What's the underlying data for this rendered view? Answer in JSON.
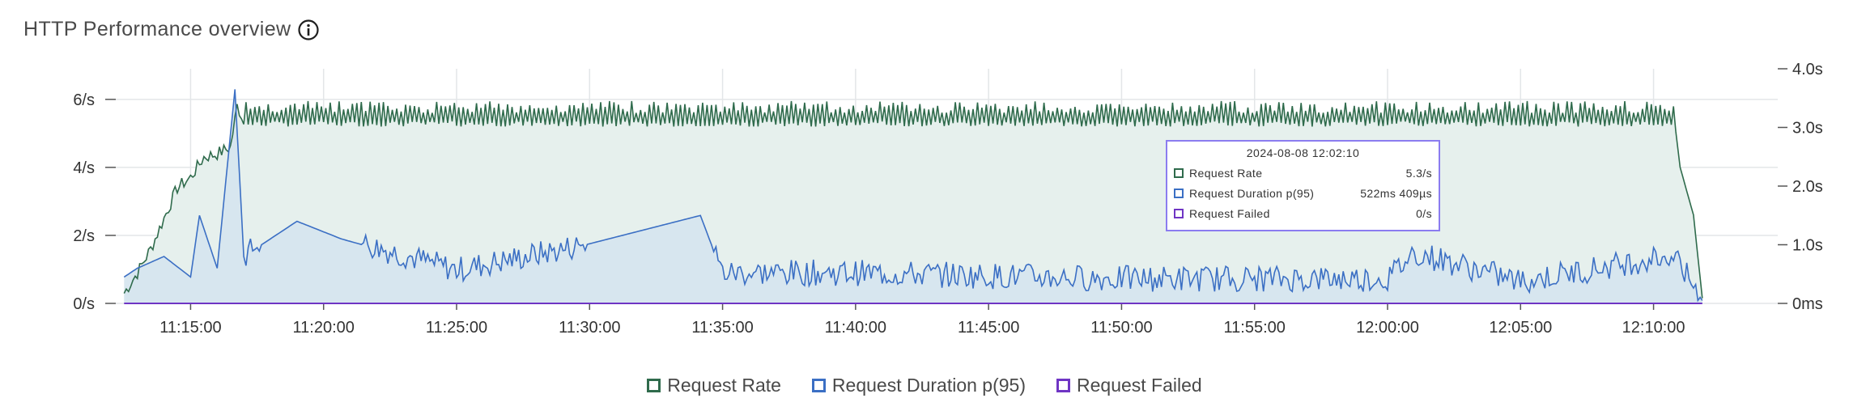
{
  "header": {
    "title": "HTTP Performance overview",
    "info_icon": "info-circle-icon"
  },
  "colors": {
    "request_rate": "#2f6b4c",
    "request_rate_fill": "#e6f0ed",
    "request_duration": "#3b6fc4",
    "request_duration_fill": "#d5e4ee",
    "request_failed": "#6f35c4",
    "grid": "#e3e6e8",
    "tooltip_border": "#8b7cf0"
  },
  "legend": {
    "items": [
      {
        "label": "Request Rate",
        "color": "#2f6b4c"
      },
      {
        "label": "Request Duration p(95)",
        "color": "#3b6fc4"
      },
      {
        "label": "Request Failed",
        "color": "#6f35c4"
      }
    ]
  },
  "tooltip": {
    "title": "2024-08-08 12:02:10",
    "rows": [
      {
        "label": "Request Rate",
        "value": "5.3/s",
        "color": "#2f6b4c"
      },
      {
        "label": "Request Duration p(95)",
        "value": "522ms 409µs",
        "color": "#3b6fc4"
      },
      {
        "label": "Request Failed",
        "value": "0/s",
        "color": "#6f35c4"
      }
    ]
  },
  "chart_data": {
    "type": "area",
    "x_ticks": [
      "11:15:00",
      "11:20:00",
      "11:25:00",
      "11:30:00",
      "11:35:00",
      "11:40:00",
      "11:45:00",
      "11:50:00",
      "11:55:00",
      "12:00:00",
      "12:05:00",
      "12:10:00"
    ],
    "x_range": [
      "11:12:24",
      "12:11:54"
    ],
    "y_left": {
      "ticks": [
        "0/s",
        "2/s",
        "4/s",
        "6/s"
      ],
      "values": [
        0,
        2,
        4,
        6
      ],
      "range": [
        0,
        6.9
      ]
    },
    "y_right": {
      "ticks": [
        "0ms",
        "1.0s",
        "2.0s",
        "3.0s",
        "4.0s"
      ],
      "values": [
        0,
        1,
        2,
        3,
        4
      ],
      "range": [
        0,
        4
      ]
    },
    "grid": true,
    "legend_position": "bottom-center",
    "series": [
      {
        "name": "Request Rate",
        "axis": "left",
        "points": [
          [
            "11:12:30",
            0.3
          ],
          [
            "11:13:00",
            0.9
          ],
          [
            "11:13:30",
            1.6
          ],
          [
            "11:14:00",
            2.5
          ],
          [
            "11:14:30",
            3.4
          ],
          [
            "11:15:00",
            3.7
          ],
          [
            "11:15:30",
            4.3
          ],
          [
            "11:16:00",
            4.4
          ],
          [
            "11:16:30",
            4.6
          ],
          [
            "11:16:45",
            5.8
          ],
          [
            "11:17:00",
            5.4
          ],
          [
            "11:20:00",
            5.55
          ],
          [
            "11:30:00",
            5.5
          ],
          [
            "11:40:00",
            5.5
          ],
          [
            "11:50:00",
            5.45
          ],
          [
            "12:00:00",
            5.5
          ],
          [
            "12:05:00",
            5.5
          ],
          [
            "12:10:00",
            5.5
          ],
          [
            "12:10:45",
            5.6
          ],
          [
            "12:11:00",
            4.0
          ],
          [
            "12:11:30",
            2.6
          ],
          [
            "12:11:50",
            0.15
          ]
        ],
        "oscillation": {
          "low": 5.2,
          "high": 5.95,
          "period_s": 10
        }
      },
      {
        "name": "Request Duration p(95)",
        "axis": "right",
        "points": [
          [
            "11:12:30",
            0.45
          ],
          [
            "11:13:00",
            0.6
          ],
          [
            "11:14:00",
            0.8
          ],
          [
            "11:15:00",
            0.45
          ],
          [
            "11:15:20",
            1.5
          ],
          [
            "11:16:00",
            0.6
          ],
          [
            "11:16:40",
            3.65
          ],
          [
            "11:17:00",
            0.8
          ],
          [
            "11:19:00",
            1.4
          ],
          [
            "11:20:40",
            1.1
          ],
          [
            "11:25:00",
            0.55
          ],
          [
            "11:29:00",
            0.9
          ],
          [
            "11:34:10",
            1.5
          ],
          [
            "11:35:00",
            0.5
          ],
          [
            "11:40:00",
            0.5
          ],
          [
            "11:45:00",
            0.45
          ],
          [
            "11:50:00",
            0.4
          ],
          [
            "11:55:00",
            0.4
          ],
          [
            "12:00:00",
            0.4
          ],
          [
            "12:01:00",
            0.85
          ],
          [
            "12:05:00",
            0.35
          ],
          [
            "12:10:40",
            0.8
          ],
          [
            "12:11:50",
            0.1
          ]
        ]
      },
      {
        "name": "Request Failed",
        "axis": "left",
        "points": [
          [
            "11:12:30",
            0
          ],
          [
            "12:11:50",
            0
          ]
        ]
      }
    ]
  }
}
